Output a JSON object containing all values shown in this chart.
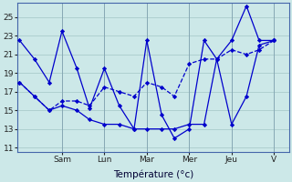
{
  "background_color": "#cce8e8",
  "grid_color": "#aacccc",
  "line_color": "#0000cc",
  "xlabel": "Température (°c)",
  "ylim": [
    10.5,
    26.5
  ],
  "yticks": [
    11,
    13,
    15,
    17,
    19,
    21,
    23,
    25
  ],
  "xlim": [
    -0.05,
    6.35
  ],
  "day_labels": [
    "Sam",
    "Lun",
    "Mar",
    "Mer",
    "Jeu",
    "V"
  ],
  "day_positions": [
    1.0,
    2.0,
    3.0,
    4.0,
    5.0,
    6.0
  ],
  "series": [
    {
      "x": [
        0.0,
        0.35,
        0.7,
        1.0,
        1.35,
        1.65,
        2.0,
        2.35,
        2.7,
        3.0,
        3.35,
        3.65,
        4.0,
        4.35,
        4.65,
        5.0,
        5.35,
        5.65,
        6.0
      ],
      "y": [
        22.5,
        20.5,
        18.0,
        23.5,
        19.5,
        15.2,
        19.5,
        15.5,
        13.0,
        22.5,
        14.5,
        12.0,
        13.0,
        22.5,
        20.5,
        22.5,
        26.2,
        22.5,
        22.5
      ],
      "ls": "-"
    },
    {
      "x": [
        0.0,
        0.35,
        0.7,
        1.0,
        1.35,
        1.65,
        2.0,
        2.35,
        2.7,
        3.0,
        3.35,
        3.65,
        4.0,
        4.35,
        4.65,
        5.0,
        5.35,
        5.65,
        6.0
      ],
      "y": [
        18.0,
        16.5,
        15.0,
        15.5,
        15.0,
        14.0,
        13.5,
        13.5,
        13.0,
        13.0,
        13.0,
        13.0,
        13.5,
        13.5,
        20.5,
        13.5,
        16.5,
        22.0,
        22.5
      ],
      "ls": "-"
    },
    {
      "x": [
        0.0,
        0.35,
        0.7,
        1.0,
        1.35,
        1.65,
        2.0,
        2.35,
        2.7,
        3.0,
        3.35,
        3.65,
        4.0,
        4.35,
        4.65,
        5.0,
        5.35,
        5.65,
        6.0
      ],
      "y": [
        18.0,
        16.5,
        15.0,
        16.0,
        16.0,
        15.5,
        17.5,
        17.0,
        16.5,
        18.0,
        17.5,
        16.5,
        20.0,
        20.5,
        20.5,
        21.5,
        21.0,
        21.5,
        22.5
      ],
      "ls": "--"
    }
  ]
}
